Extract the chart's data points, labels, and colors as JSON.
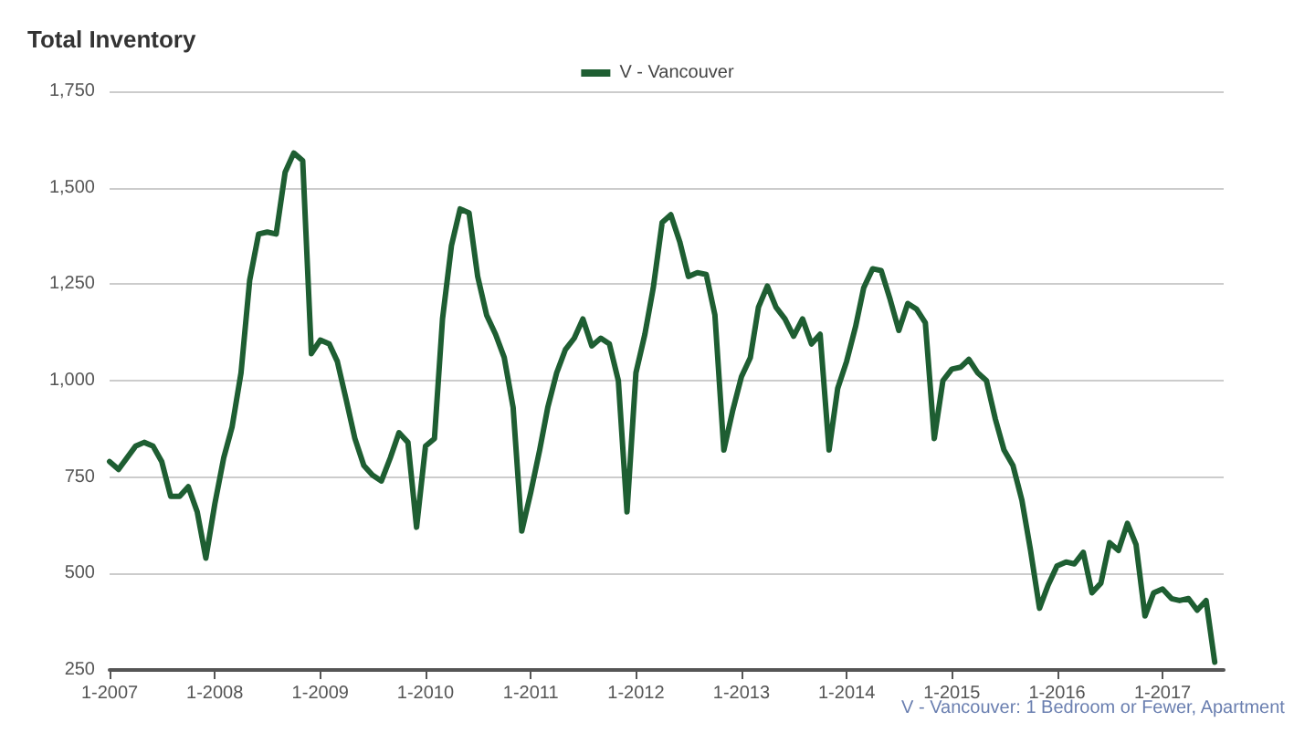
{
  "chart_data": {
    "type": "line",
    "title": "Total Inventory",
    "annotations": [
      "V - Vancouver: 1 Bedroom or Fewer, Apartment"
    ],
    "x": [
      "2007-01",
      "2007-02",
      "2007-04",
      "2007-05",
      "2007-06",
      "2007-07",
      "2007-08",
      "2007-09",
      "2007-10",
      "2007-11",
      "2007-12",
      "2008-01",
      "2008-02",
      "2008-03",
      "2008-04",
      "2008-05",
      "2008-06",
      "2008-07",
      "2008-08",
      "2008-09",
      "2008-10",
      "2008-11",
      "2008-12",
      "2009-01",
      "2009-02",
      "2009-03",
      "2009-04",
      "2009-05",
      "2009-06",
      "2009-07",
      "2009-08",
      "2009-09",
      "2009-10",
      "2009-11",
      "2009-12",
      "2010-01",
      "2010-02",
      "2010-03",
      "2010-04",
      "2010-05",
      "2010-06",
      "2010-07",
      "2010-08",
      "2010-09",
      "2010-10",
      "2010-11",
      "2010-12",
      "2011-01",
      "2011-02",
      "2011-03",
      "2011-04",
      "2011-05",
      "2011-06",
      "2011-07",
      "2011-08",
      "2011-09",
      "2011-10",
      "2011-11",
      "2011-12",
      "2012-01",
      "2012-02",
      "2012-03",
      "2012-04",
      "2012-05",
      "2012-06",
      "2012-07",
      "2012-08",
      "2012-09",
      "2012-10",
      "2012-11",
      "2012-12",
      "2013-01",
      "2013-02",
      "2013-03",
      "2013-04",
      "2013-05",
      "2013-06",
      "2013-07",
      "2013-08",
      "2013-09",
      "2013-10",
      "2013-11",
      "2013-12",
      "2014-01",
      "2014-02",
      "2014-03",
      "2014-04",
      "2014-05",
      "2014-06",
      "2014-07",
      "2014-08",
      "2014-09",
      "2014-10",
      "2014-11",
      "2014-12",
      "2015-01",
      "2015-02",
      "2015-03",
      "2015-04",
      "2015-05",
      "2015-06",
      "2015-07",
      "2015-08",
      "2015-09",
      "2015-10",
      "2015-11",
      "2015-12",
      "2016-01",
      "2016-02",
      "2016-03",
      "2016-04",
      "2016-05",
      "2016-06",
      "2016-07",
      "2016-08",
      "2016-09",
      "2016-10",
      "2016-11",
      "2016-12",
      "2017-01",
      "2017-02",
      "2017-03",
      "2017-04",
      "2017-05",
      "2017-06",
      "2017-07"
    ],
    "series": [
      {
        "name": "V - Vancouver",
        "color": "#1e5e32",
        "values": [
          790,
          770,
          830,
          840,
          830,
          790,
          700,
          700,
          725,
          660,
          540,
          680,
          800,
          880,
          1020,
          1260,
          1380,
          1385,
          1380,
          1540,
          1590,
          1570,
          1070,
          1105,
          1095,
          1050,
          950,
          850,
          780,
          755,
          740,
          800,
          865,
          840,
          620,
          830,
          850,
          1160,
          1350,
          1445,
          1435,
          1270,
          1170,
          1120,
          1060,
          930,
          610,
          710,
          820,
          930,
          1020,
          1080,
          1110,
          1160,
          1090,
          1110,
          1095,
          1000,
          660,
          1020,
          1120,
          1240,
          1410,
          1430,
          1360,
          1270,
          1280,
          1275,
          1170,
          820,
          920,
          1010,
          1060,
          1190,
          1245,
          1190,
          1160,
          1115,
          1160,
          1095,
          1120,
          820,
          980,
          1050,
          1140,
          1240,
          1290,
          1285,
          1210,
          1130,
          1200,
          1185,
          1150,
          850,
          1000,
          1030,
          1035,
          1055,
          1020,
          1000,
          900,
          820,
          780,
          690,
          560,
          410,
          470,
          520,
          530,
          525,
          555,
          450,
          475,
          580,
          560,
          630,
          575,
          390,
          450,
          460,
          435,
          430,
          435,
          405,
          430,
          270
        ]
      }
    ],
    "xlim": [
      "2007-01",
      "2017-08"
    ],
    "xticks": [
      {
        "value": "2007-01",
        "label": "1-2007"
      },
      {
        "value": "2008-01",
        "label": "1-2008"
      },
      {
        "value": "2009-01",
        "label": "1-2009"
      },
      {
        "value": "2010-01",
        "label": "1-2010"
      },
      {
        "value": "2011-01",
        "label": "1-2011"
      },
      {
        "value": "2012-01",
        "label": "1-2012"
      },
      {
        "value": "2013-01",
        "label": "1-2013"
      },
      {
        "value": "2014-01",
        "label": "1-2014"
      },
      {
        "value": "2015-01",
        "label": "1-2015"
      },
      {
        "value": "2016-01",
        "label": "1-2016"
      },
      {
        "value": "2017-01",
        "label": "1-2017"
      }
    ],
    "ylim": [
      250,
      1750
    ],
    "yticks": [
      {
        "value": 250,
        "label": "250"
      },
      {
        "value": 500,
        "label": "500"
      },
      {
        "value": 750,
        "label": "750"
      },
      {
        "value": 1000,
        "label": "1,000"
      },
      {
        "value": 1250,
        "label": "1,250"
      },
      {
        "value": 1500,
        "label": "1,500"
      },
      {
        "value": 1750,
        "label": "1,750"
      }
    ],
    "grid": "y",
    "legend": "top",
    "marker": "none",
    "line_style": "solid"
  }
}
